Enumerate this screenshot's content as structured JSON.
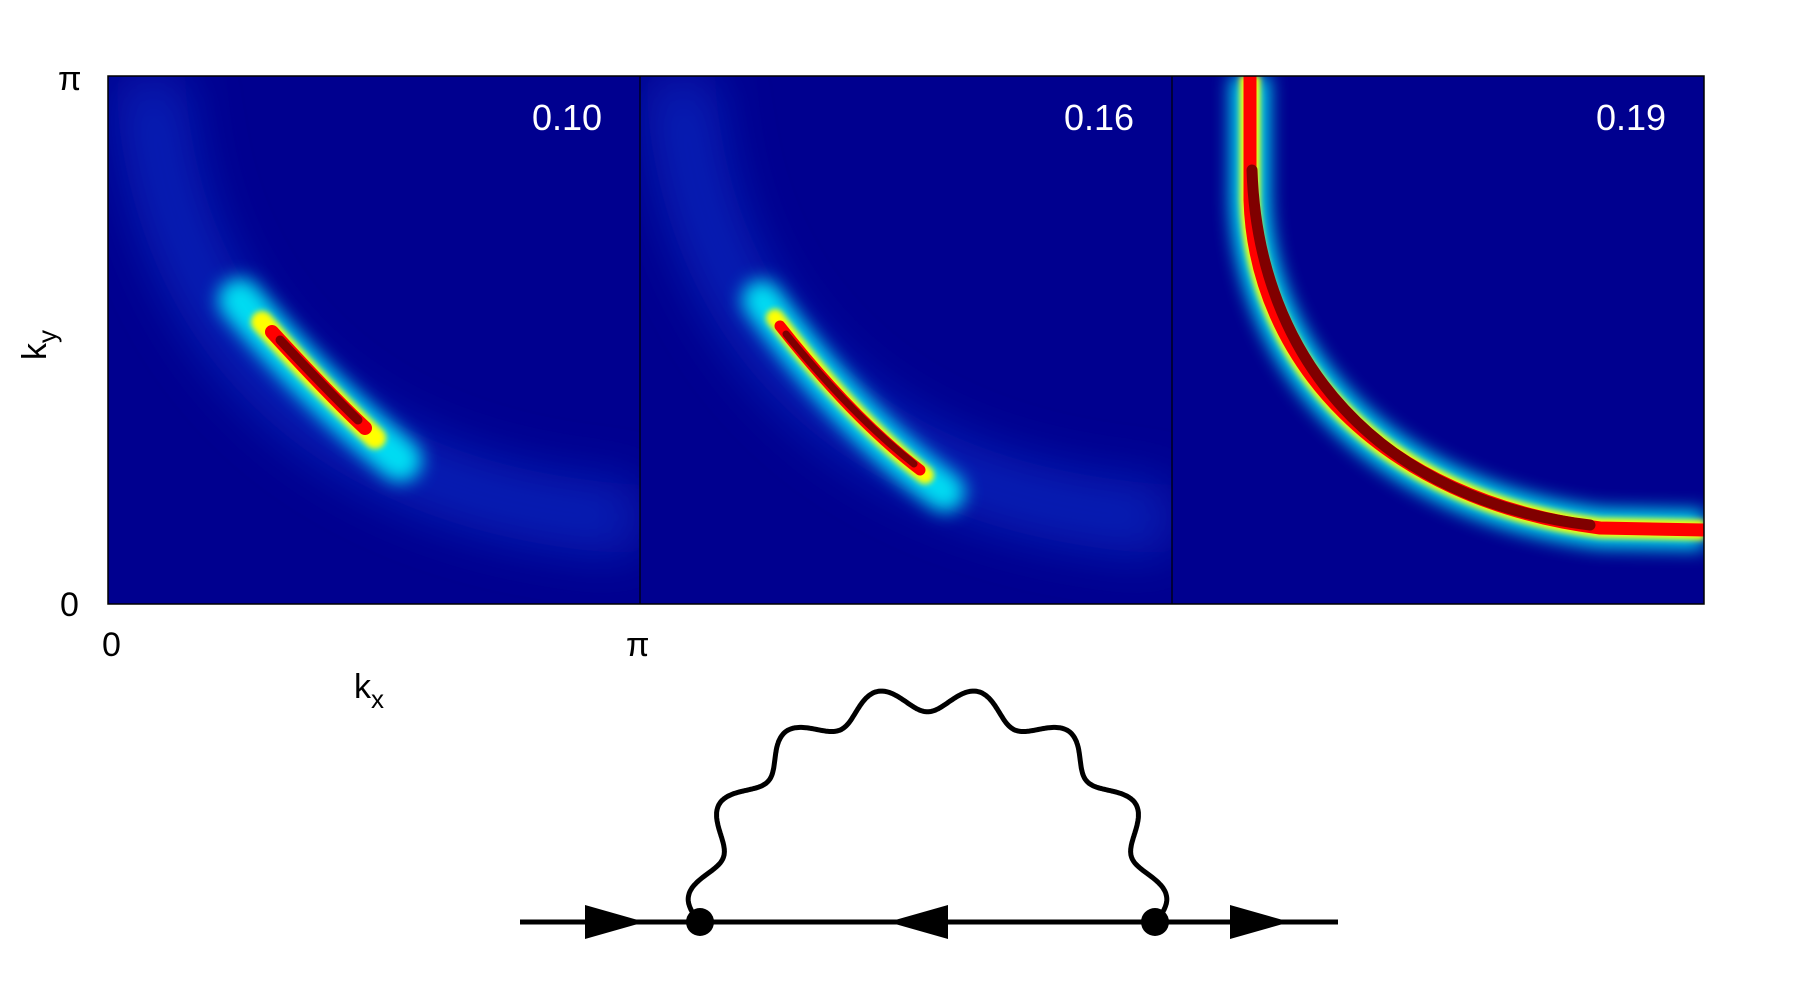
{
  "panels": [
    {
      "label": "0.10",
      "fermi_arc": "short"
    },
    {
      "label": "0.16",
      "fermi_arc": "medium"
    },
    {
      "label": "0.19",
      "fermi_arc": "full"
    }
  ],
  "axes": {
    "y_label_main": "k",
    "y_label_sub": "y",
    "x_label_main": "k",
    "x_label_sub": "x",
    "y_tick_top": "π",
    "y_tick_bottom": "0",
    "x_tick_left": "0",
    "x_tick_right": "π"
  },
  "colormap": [
    "#00008f",
    "#0000ff",
    "#00ffff",
    "#ffff00",
    "#ff0000",
    "#800000"
  ],
  "diagram": {
    "type": "fermion self-energy with boson loop",
    "arrows": [
      "right",
      "left",
      "right"
    ],
    "vertices": 2
  }
}
